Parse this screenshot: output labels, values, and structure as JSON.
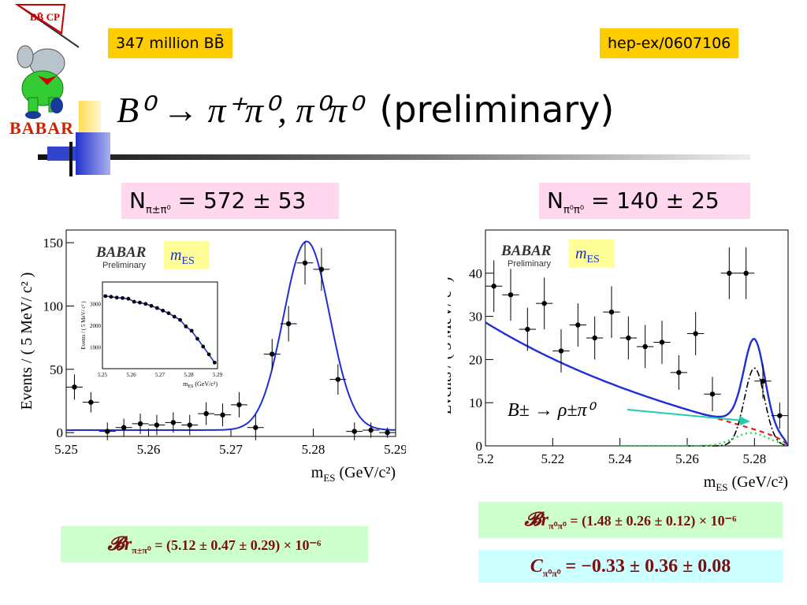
{
  "logo": {
    "pennant_text": "BB̄ CP",
    "brand_text": "BABAR"
  },
  "tags": {
    "events": "347 million BB̄",
    "arxiv": "hep-ex/0607106"
  },
  "title": {
    "formula_text": "B⁰ → π⁺π⁰, π⁰π⁰",
    "suffix": "(preliminary)"
  },
  "yields": {
    "left": {
      "label": "N",
      "sub": "π±π⁰",
      "value": "= 572 ± 53"
    },
    "right": {
      "label": "N",
      "sub": "π⁰π⁰",
      "value": "= 140 ± 25"
    }
  },
  "results": {
    "br_pm": {
      "symbol": "𝓑r",
      "sub": "π±π⁰",
      "value": "= (5.12 ± 0.47 ± 0.29) × 10⁻⁶"
    },
    "br_00": {
      "symbol": "𝓑r",
      "sub": "π⁰π⁰",
      "value": "= (1.48 ± 0.26 ± 0.12) × 10⁻⁶"
    },
    "c_00": {
      "symbol": "C",
      "sub": "π⁰π⁰",
      "value": "= −0.33 ± 0.36 ± 0.08"
    }
  },
  "chart_data": [
    {
      "type": "scatter",
      "title": "",
      "watermark": "BABAR",
      "watermark_sub": "Preliminary",
      "var_label": "m",
      "var_sub": "ES",
      "xlabel": "m",
      "xlabel_sub": "ES",
      "xlabel_unit": " (GeV/c²)",
      "ylabel": "Events / ( 5 MeV/ c² )",
      "xlim": [
        5.25,
        5.29
      ],
      "ylim": [
        -3,
        160
      ],
      "xticks": [
        "5.25",
        "5.26",
        "5.27",
        "5.28",
        "5.29"
      ],
      "yticks": [
        "0",
        "50",
        "100",
        "150"
      ],
      "points": [
        {
          "x": 5.251,
          "y": 36,
          "err": 10
        },
        {
          "x": 5.253,
          "y": 24,
          "err": 8
        },
        {
          "x": 5.255,
          "y": 1,
          "err": 7
        },
        {
          "x": 5.257,
          "y": 4,
          "err": 7
        },
        {
          "x": 5.259,
          "y": 7,
          "err": 8
        },
        {
          "x": 5.261,
          "y": 6,
          "err": 8
        },
        {
          "x": 5.263,
          "y": 8,
          "err": 8
        },
        {
          "x": 5.265,
          "y": 6,
          "err": 8
        },
        {
          "x": 5.267,
          "y": 15,
          "err": 9
        },
        {
          "x": 5.269,
          "y": 14,
          "err": 9
        },
        {
          "x": 5.271,
          "y": 22,
          "err": 10
        },
        {
          "x": 5.273,
          "y": 4,
          "err": 10
        },
        {
          "x": 5.275,
          "y": 62,
          "err": 12
        },
        {
          "x": 5.277,
          "y": 86,
          "err": 14
        },
        {
          "x": 5.279,
          "y": 134,
          "err": 17
        },
        {
          "x": 5.281,
          "y": 129,
          "err": 17
        },
        {
          "x": 5.283,
          "y": 42,
          "err": 12
        },
        {
          "x": 5.285,
          "y": 1,
          "err": 7
        },
        {
          "x": 5.287,
          "y": 2,
          "err": 6
        },
        {
          "x": 5.289,
          "y": 0,
          "err": 4
        }
      ],
      "fit": {
        "baseline": 2,
        "peak_x": 5.2792,
        "amplitude": 149,
        "sigma": 0.0028
      },
      "inset": {
        "ylabel": "Events / ( 5 MeV/ c² )",
        "xlabel": "m",
        "xlabel_sub": "ES",
        "xlabel_unit": " (GeV/c²)",
        "xlim": [
          5.25,
          5.29
        ],
        "ylim": [
          0,
          4000
        ],
        "xticks": [
          "5.25",
          "5.26",
          "5.27",
          "5.28",
          "5.29"
        ],
        "yticks": [
          "1000",
          "2000",
          "3000"
        ],
        "points": [
          {
            "x": 5.251,
            "y": 3350
          },
          {
            "x": 5.253,
            "y": 3320
          },
          {
            "x": 5.255,
            "y": 3280
          },
          {
            "x": 5.257,
            "y": 3260
          },
          {
            "x": 5.259,
            "y": 3230
          },
          {
            "x": 5.261,
            "y": 3090
          },
          {
            "x": 5.263,
            "y": 3050
          },
          {
            "x": 5.265,
            "y": 2990
          },
          {
            "x": 5.267,
            "y": 2900
          },
          {
            "x": 5.269,
            "y": 2800
          },
          {
            "x": 5.271,
            "y": 2680
          },
          {
            "x": 5.273,
            "y": 2560
          },
          {
            "x": 5.275,
            "y": 2400
          },
          {
            "x": 5.277,
            "y": 2250
          },
          {
            "x": 5.279,
            "y": 1950
          },
          {
            "x": 5.281,
            "y": 1750
          },
          {
            "x": 5.283,
            "y": 1380
          },
          {
            "x": 5.285,
            "y": 1020
          },
          {
            "x": 5.287,
            "y": 660
          },
          {
            "x": 5.289,
            "y": 280
          }
        ]
      }
    },
    {
      "type": "scatter",
      "title": "",
      "watermark": "BABAR",
      "watermark_sub": "Preliminary",
      "var_label": "m",
      "var_sub": "ES",
      "xlabel": "m",
      "xlabel_sub": "ES",
      "xlabel_unit": " (GeV/c²)",
      "ylabel": "Events / ( 5 MeV/ c² )",
      "xlim": [
        5.2,
        5.29
      ],
      "ylim": [
        0,
        50
      ],
      "xticks": [
        "5.2",
        "5.22",
        "5.24",
        "5.26",
        "5.28"
      ],
      "yticks": [
        "0",
        "10",
        "20",
        "30",
        "40"
      ],
      "annotation": "B± → ρ±π⁰",
      "colors": {
        "fit": "#1f2fd6",
        "bkg": "#e02020",
        "peaking": "#000000",
        "rho": "#22dd44",
        "arrow": "#22ccaa"
      },
      "points": [
        {
          "x": 5.2025,
          "y": 37,
          "err": 6
        },
        {
          "x": 5.2075,
          "y": 35,
          "err": 6
        },
        {
          "x": 5.2125,
          "y": 27,
          "err": 5
        },
        {
          "x": 5.2175,
          "y": 33,
          "err": 6
        },
        {
          "x": 5.2225,
          "y": 22,
          "err": 5
        },
        {
          "x": 5.2275,
          "y": 28,
          "err": 5
        },
        {
          "x": 5.2325,
          "y": 25,
          "err": 5
        },
        {
          "x": 5.2375,
          "y": 31,
          "err": 6
        },
        {
          "x": 5.2425,
          "y": 25,
          "err": 5
        },
        {
          "x": 5.2475,
          "y": 23,
          "err": 5
        },
        {
          "x": 5.2525,
          "y": 24,
          "err": 5
        },
        {
          "x": 5.2575,
          "y": 17,
          "err": 4
        },
        {
          "x": 5.2625,
          "y": 26,
          "err": 5
        },
        {
          "x": 5.2675,
          "y": 12,
          "err": 4
        },
        {
          "x": 5.2725,
          "y": 40,
          "err": 6
        },
        {
          "x": 5.2775,
          "y": 40,
          "err": 6
        },
        {
          "x": 5.2825,
          "y": 15,
          "err": 4
        },
        {
          "x": 5.2875,
          "y": 7,
          "err": 3
        }
      ]
    }
  ]
}
